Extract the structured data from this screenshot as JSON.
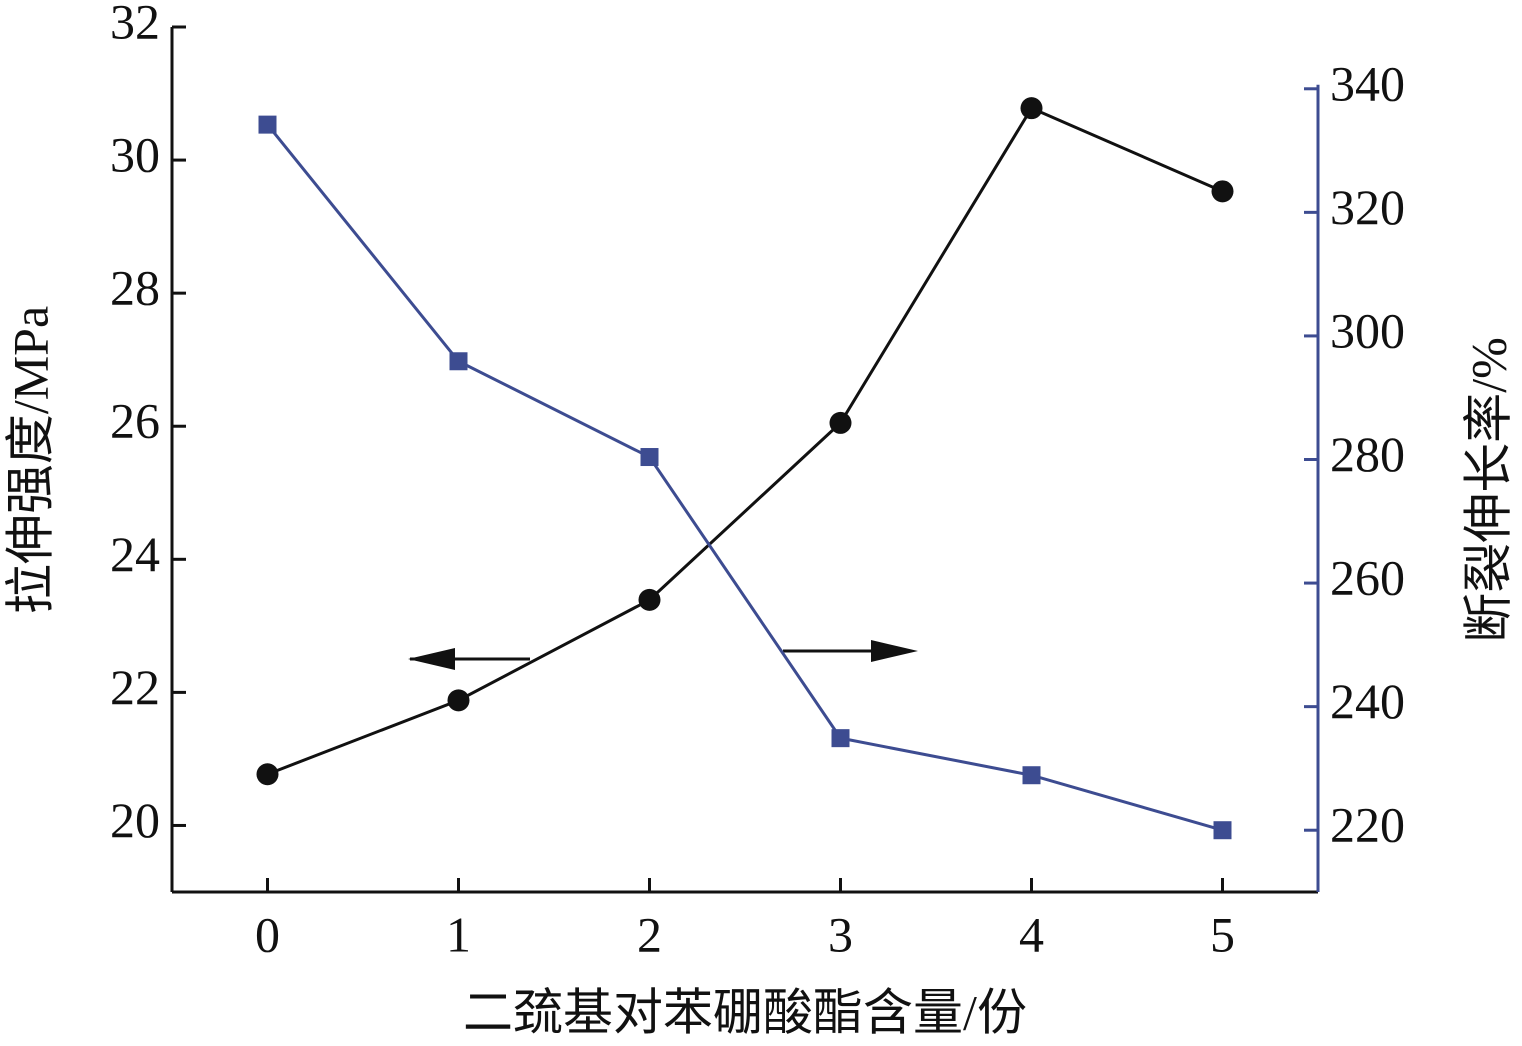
{
  "chart_data": {
    "type": "line",
    "x_label": "二巯基对苯硼酸酯含量/份",
    "y_label": "拉伸强度/MPa",
    "y2_label": "断裂伸长率/%",
    "x": [
      0,
      1,
      2,
      3,
      4,
      5
    ],
    "xlim": [
      -0.5,
      5.5
    ],
    "xticks": [
      0,
      1,
      2,
      3,
      4,
      5
    ],
    "ylim": [
      19,
      32
    ],
    "yticks": [
      20,
      22,
      24,
      26,
      28,
      30,
      32
    ],
    "y2lim": [
      210,
      350
    ],
    "y2ticks": [
      220,
      240,
      260,
      280,
      300,
      320,
      340
    ],
    "series": [
      {
        "color": "#111111",
        "marker": "circle",
        "values": [
          20.77,
          21.88,
          23.39,
          26.05,
          30.78,
          29.53
        ]
      },
      {
        "color": "#3d4c91",
        "marker": "square",
        "axis": "y2",
        "values": [
          334.2,
          295.9,
          280.4,
          234.9,
          228.9,
          220.0
        ]
      }
    ]
  }
}
